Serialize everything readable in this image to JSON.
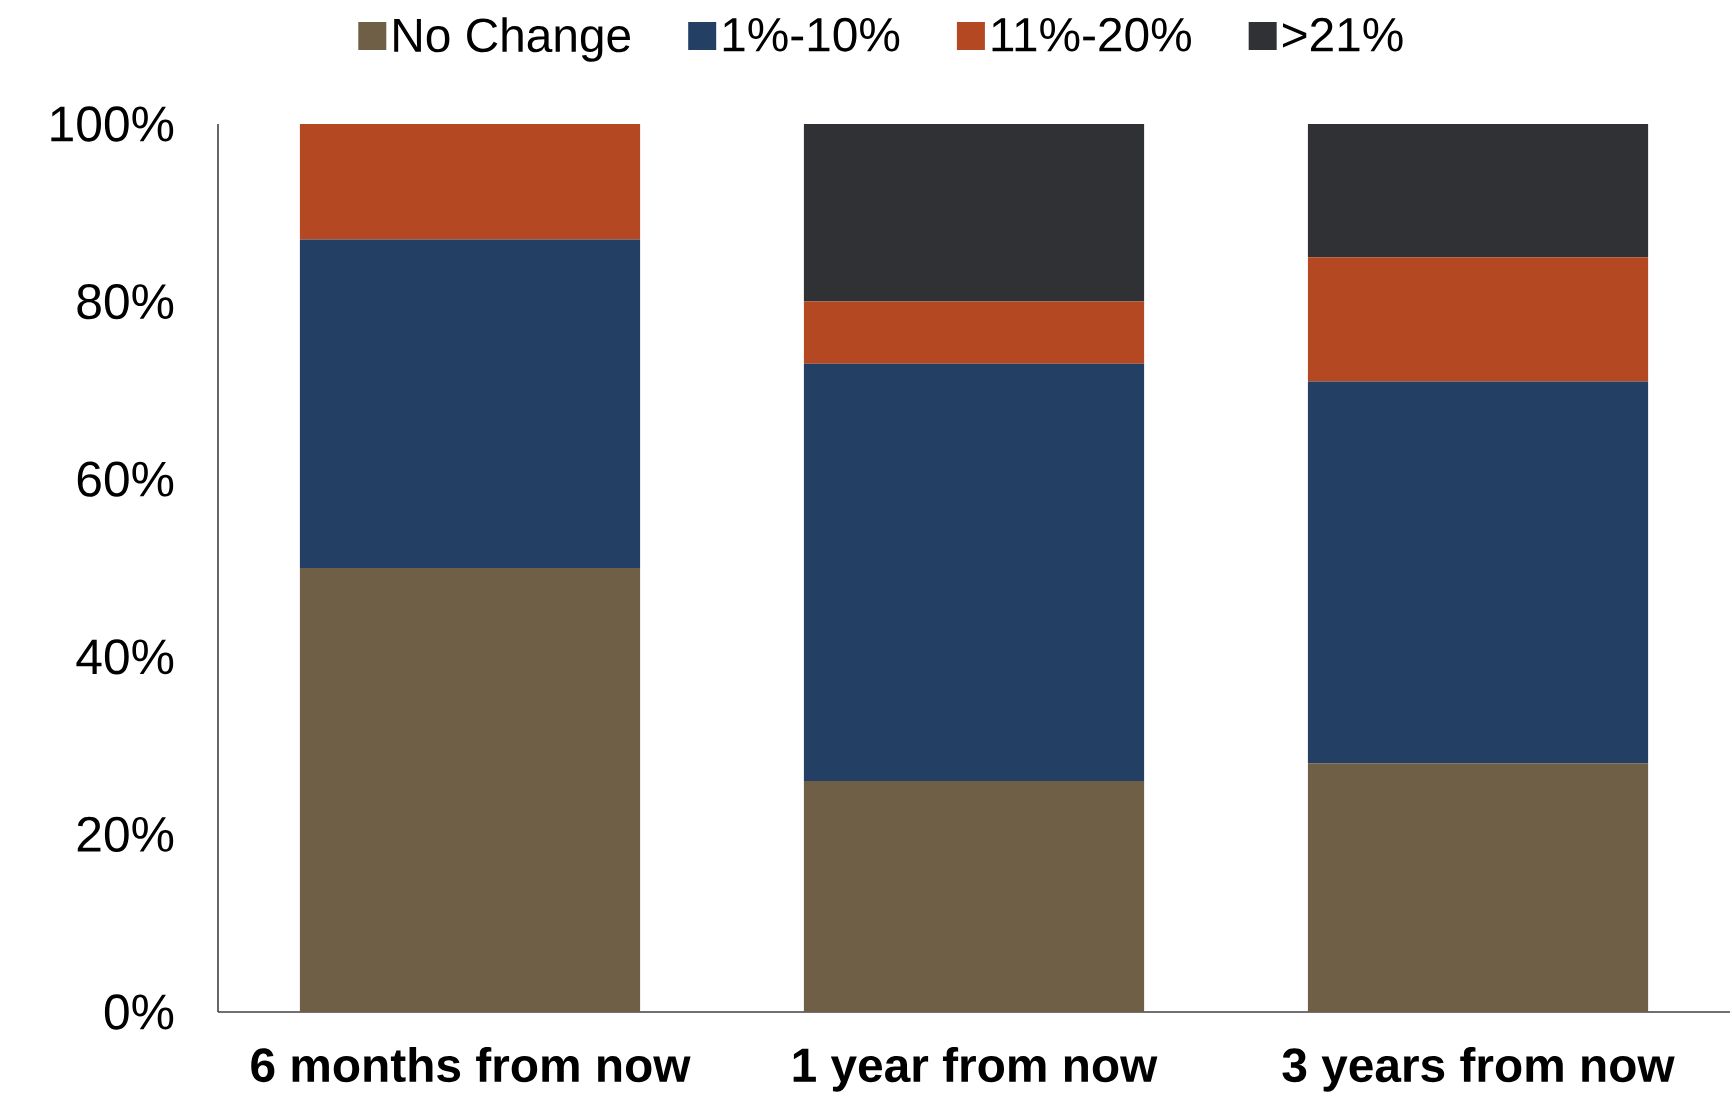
{
  "chart_data": {
    "type": "bar",
    "stacked": true,
    "categories": [
      "6 months from now",
      "1 year from now",
      "3 years from now"
    ],
    "series": [
      {
        "name": "No Change",
        "color": "#6f5f46",
        "values": [
          50,
          26,
          28
        ]
      },
      {
        "name": "1%-10%",
        "color": "#243f64",
        "values": [
          37,
          47,
          43
        ]
      },
      {
        "name": "11%-20%",
        "color": "#b34823",
        "values": [
          13,
          7,
          14
        ]
      },
      {
        "name": ">21%",
        "color": "#303134",
        "values": [
          0,
          20,
          15
        ]
      }
    ],
    "ylim": [
      0,
      100
    ],
    "yticks": [
      {
        "value": 0,
        "label": "0%"
      },
      {
        "value": 20,
        "label": "20%"
      },
      {
        "value": 40,
        "label": "40%"
      },
      {
        "value": 60,
        "label": "60%"
      },
      {
        "value": 80,
        "label": "80%"
      },
      {
        "value": 100,
        "label": "100%"
      }
    ],
    "legend": "top"
  }
}
